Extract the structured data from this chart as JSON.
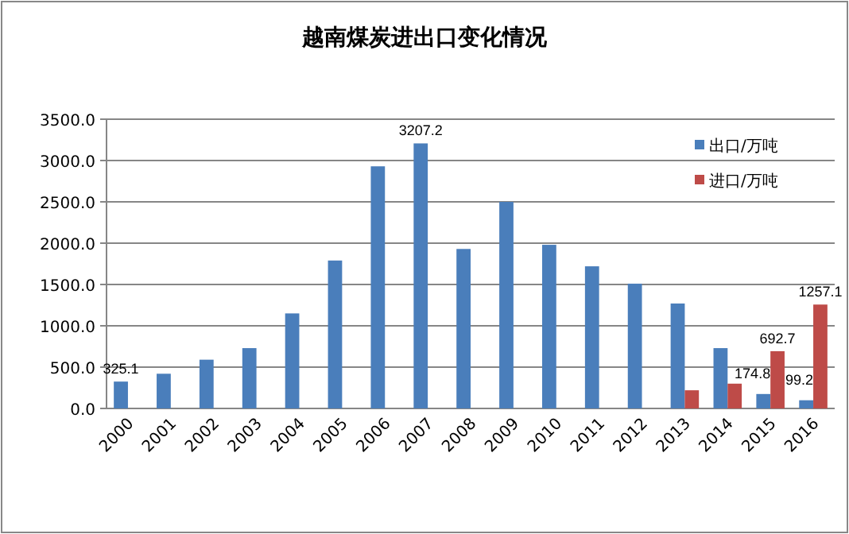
{
  "chart_data": {
    "type": "bar",
    "title": "越南煤炭进出口变化情况",
    "categories": [
      "2000",
      "2001",
      "2002",
      "2003",
      "2004",
      "2005",
      "2006",
      "2007",
      "2008",
      "2009",
      "2010",
      "2011",
      "2012",
      "2013",
      "2014",
      "2015",
      "2016"
    ],
    "series": [
      {
        "name": "出口/万吨",
        "color": "#4a7ebb",
        "values": [
          325.1,
          420,
          590,
          730,
          1150,
          1790,
          2930,
          3207.2,
          1930,
          2500,
          1980,
          1720,
          1510,
          1270,
          730,
          174.8,
          99.2
        ],
        "value_labels": [
          "325.1",
          null,
          null,
          null,
          null,
          null,
          null,
          "3207.2",
          null,
          null,
          null,
          null,
          null,
          null,
          null,
          "174.8",
          "99.2"
        ]
      },
      {
        "name": "进口/万吨",
        "color": "#be4b48",
        "values": [
          null,
          null,
          null,
          null,
          null,
          null,
          null,
          null,
          null,
          null,
          null,
          null,
          null,
          220,
          300,
          692.7,
          1257.1
        ],
        "value_labels": [
          null,
          null,
          null,
          null,
          null,
          null,
          null,
          null,
          null,
          null,
          null,
          null,
          null,
          null,
          null,
          "692.7",
          "1257.1"
        ]
      }
    ],
    "ylim": [
      0,
      3500
    ],
    "yticks": [
      {
        "value": 0,
        "label": "0.0"
      },
      {
        "value": 500,
        "label": "500.0"
      },
      {
        "value": 1000,
        "label": "1000.0"
      },
      {
        "value": 1500,
        "label": "1500.0"
      },
      {
        "value": 2000,
        "label": "2000.0"
      },
      {
        "value": 2500,
        "label": "2500.0"
      },
      {
        "value": 3000,
        "label": "3000.0"
      },
      {
        "value": 3500,
        "label": "3500.0"
      }
    ],
    "grid": "y",
    "legend": "top right"
  }
}
